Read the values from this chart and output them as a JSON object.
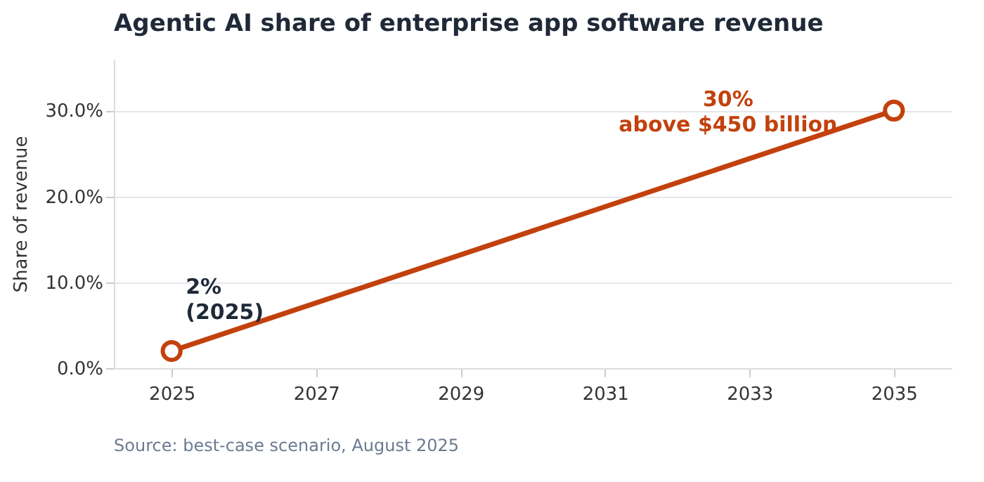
{
  "chart_data": {
    "type": "line",
    "title": "Agentic AI share of enterprise app software revenue",
    "ylabel": "Share of revenue",
    "x": [
      2025,
      2035
    ],
    "series": [
      {
        "color": "#c2410c",
        "values": [
          2,
          30
        ]
      }
    ],
    "xlim": [
      2024.2,
      2035.8
    ],
    "xticks": [
      2025,
      2027,
      2029,
      2031,
      2033,
      2035
    ],
    "ylim": [
      0,
      36
    ],
    "yticks": [
      {
        "value": 0,
        "label": "0.0%"
      },
      {
        "value": 10,
        "label": "10.0%"
      },
      {
        "value": 20,
        "label": "20.0%"
      },
      {
        "value": 30,
        "label": "30.0%"
      }
    ],
    "grid": "y",
    "marker": "circle",
    "line_style": "solid",
    "annotations": [
      {
        "text": "2%\n(2025)",
        "x": 2025,
        "y": 2
      },
      {
        "text": "30%\nabove $450 billion",
        "x": 2035,
        "y": 30
      },
      "Source: best-case scenario, August 2025"
    ]
  }
}
